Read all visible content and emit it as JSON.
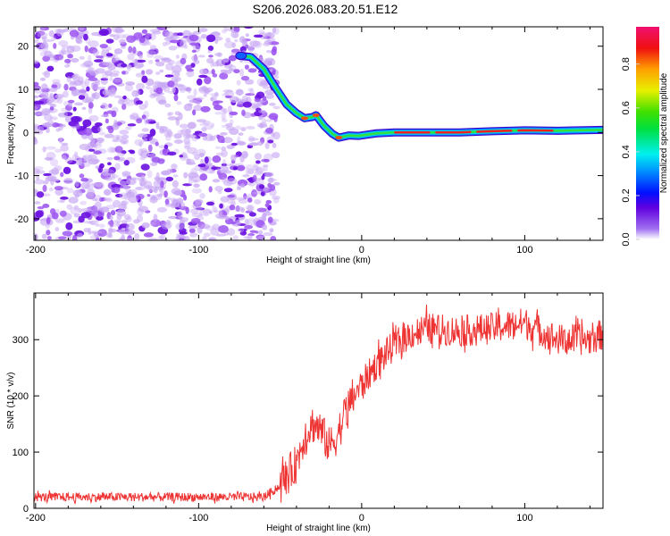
{
  "title": "S206.2026.083.20.51.E12",
  "chart_data": [
    {
      "type": "heatmap",
      "title": "S206.2026.083.20.51.E12",
      "xlabel": "Height of straight line (km)",
      "ylabel": "Frequency (Hz)",
      "xlim": [
        -201,
        148
      ],
      "ylim": [
        -25,
        24.5
      ],
      "xticks": [
        -200,
        -100,
        0,
        100
      ],
      "yticks": [
        -20,
        -10,
        0,
        10,
        20
      ],
      "ridge": {
        "x": [
          -75,
          -68,
          -60,
          -53,
          -46,
          -40,
          -35,
          -30,
          -28,
          -23,
          -18,
          -14,
          -8,
          -2,
          9,
          20,
          40,
          60,
          80,
          100,
          120,
          148
        ],
        "y": [
          17.8,
          17.5,
          14.7,
          10.5,
          6.5,
          4.5,
          3.3,
          3.6,
          4,
          1.5,
          -0.3,
          -1.2,
          -0.7,
          -0.8,
          -0.2,
          0,
          0,
          0,
          0.3,
          0.5,
          0.4,
          0.6
        ]
      },
      "noise_region_x": [
        -201,
        -60
      ],
      "colorbar": {
        "label": "Normalized spectral amplitude",
        "range": [
          0,
          0.97
        ],
        "ticks": [
          "0.0",
          "0.2",
          "0.4",
          "0.6",
          "0.8"
        ]
      }
    },
    {
      "type": "line",
      "xlabel": "Height of straight line (km)",
      "ylabel": "SNR (10 * v/v)",
      "xlim": [
        -201,
        148
      ],
      "ylim": [
        0,
        383
      ],
      "xticks": [
        -200,
        -100,
        0,
        100
      ],
      "yticks": [
        0,
        100,
        200,
        300
      ],
      "series": [
        {
          "name": "SNR",
          "color": "#ee3333",
          "x": [
            -201,
            -150,
            -100,
            -60,
            -50,
            -40,
            -35,
            -30,
            -25,
            -20,
            -15,
            -10,
            -5,
            0,
            10,
            20,
            30,
            40,
            60,
            80,
            100,
            120,
            140,
            148
          ],
          "y": [
            20,
            20,
            20,
            20,
            40,
            80,
            130,
            150,
            140,
            110,
            130,
            170,
            200,
            220,
            260,
            290,
            310,
            320,
            315,
            320,
            330,
            300,
            300,
            310
          ]
        }
      ]
    }
  ]
}
